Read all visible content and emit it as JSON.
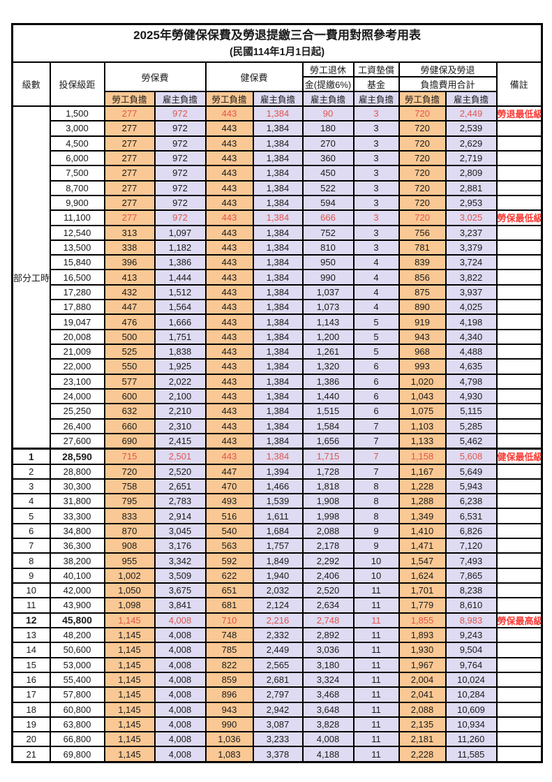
{
  "title": "2025年勞健保保費及勞退提繳三合一費用對照參考用表",
  "subtitle": "(民國114年1月1日起)",
  "colors": {
    "employee_bg": "#FAC894",
    "employer_bg": "#DEDBF2",
    "highlight_value": "#E2544E",
    "remark_red": "#FA3B36",
    "border": "#000000"
  },
  "header": {
    "level": "級數",
    "bracket": "投保級距",
    "labor_ins": "勞保費",
    "health_ins": "健保費",
    "pension_line1": "勞工退休",
    "pension_line2": "金(提繳6%)",
    "wage_fund_line1": "工資墊償",
    "wage_fund_line2": "基金",
    "total_line1": "勞健保及勞退",
    "total_line2": "負擔費用合計",
    "remark": "備註",
    "employee": "勞工負擔",
    "employer": "雇主負擔"
  },
  "part_time": {
    "label": "部分工時",
    "row_count": 23
  },
  "rows": [
    {
      "level": "",
      "bracket": "1,500",
      "values": [
        "277",
        "972",
        "443",
        "1,384",
        "90",
        "3",
        "720",
        "2,449"
      ],
      "remark": "勞退最低級距",
      "hl": true,
      "bold": false
    },
    {
      "level": "",
      "bracket": "3,000",
      "values": [
        "277",
        "972",
        "443",
        "1,384",
        "180",
        "3",
        "720",
        "2,539"
      ],
      "remark": "",
      "hl": false,
      "bold": false
    },
    {
      "level": "",
      "bracket": "4,500",
      "values": [
        "277",
        "972",
        "443",
        "1,384",
        "270",
        "3",
        "720",
        "2,629"
      ],
      "remark": "",
      "hl": false,
      "bold": false
    },
    {
      "level": "",
      "bracket": "6,000",
      "values": [
        "277",
        "972",
        "443",
        "1,384",
        "360",
        "3",
        "720",
        "2,719"
      ],
      "remark": "",
      "hl": false,
      "bold": false
    },
    {
      "level": "",
      "bracket": "7,500",
      "values": [
        "277",
        "972",
        "443",
        "1,384",
        "450",
        "3",
        "720",
        "2,809"
      ],
      "remark": "",
      "hl": false,
      "bold": false
    },
    {
      "level": "",
      "bracket": "8,700",
      "values": [
        "277",
        "972",
        "443",
        "1,384",
        "522",
        "3",
        "720",
        "2,881"
      ],
      "remark": "",
      "hl": false,
      "bold": false
    },
    {
      "level": "",
      "bracket": "9,900",
      "values": [
        "277",
        "972",
        "443",
        "1,384",
        "594",
        "3",
        "720",
        "2,953"
      ],
      "remark": "",
      "hl": false,
      "bold": false
    },
    {
      "level": "",
      "bracket": "11,100",
      "values": [
        "277",
        "972",
        "443",
        "1,384",
        "666",
        "3",
        "720",
        "3,025"
      ],
      "remark": "勞保最低級距",
      "hl": true,
      "bold": false
    },
    {
      "level": "",
      "bracket": "12,540",
      "values": [
        "313",
        "1,097",
        "443",
        "1,384",
        "752",
        "3",
        "756",
        "3,237"
      ],
      "remark": "",
      "hl": false,
      "bold": false
    },
    {
      "level": "",
      "bracket": "13,500",
      "values": [
        "338",
        "1,182",
        "443",
        "1,384",
        "810",
        "3",
        "781",
        "3,379"
      ],
      "remark": "",
      "hl": false,
      "bold": false
    },
    {
      "level": "",
      "bracket": "15,840",
      "values": [
        "396",
        "1,386",
        "443",
        "1,384",
        "950",
        "4",
        "839",
        "3,724"
      ],
      "remark": "",
      "hl": false,
      "bold": false
    },
    {
      "level": "",
      "bracket": "16,500",
      "values": [
        "413",
        "1,444",
        "443",
        "1,384",
        "990",
        "4",
        "856",
        "3,822"
      ],
      "remark": "",
      "hl": false,
      "bold": false
    },
    {
      "level": "",
      "bracket": "17,280",
      "values": [
        "432",
        "1,512",
        "443",
        "1,384",
        "1,037",
        "4",
        "875",
        "3,937"
      ],
      "remark": "",
      "hl": false,
      "bold": false
    },
    {
      "level": "",
      "bracket": "17,880",
      "values": [
        "447",
        "1,564",
        "443",
        "1,384",
        "1,073",
        "4",
        "890",
        "4,025"
      ],
      "remark": "",
      "hl": false,
      "bold": false
    },
    {
      "level": "",
      "bracket": "19,047",
      "values": [
        "476",
        "1,666",
        "443",
        "1,384",
        "1,143",
        "5",
        "919",
        "4,198"
      ],
      "remark": "",
      "hl": false,
      "bold": false
    },
    {
      "level": "",
      "bracket": "20,008",
      "values": [
        "500",
        "1,751",
        "443",
        "1,384",
        "1,200",
        "5",
        "943",
        "4,340"
      ],
      "remark": "",
      "hl": false,
      "bold": false
    },
    {
      "level": "",
      "bracket": "21,009",
      "values": [
        "525",
        "1,838",
        "443",
        "1,384",
        "1,261",
        "5",
        "968",
        "4,488"
      ],
      "remark": "",
      "hl": false,
      "bold": false
    },
    {
      "level": "",
      "bracket": "22,000",
      "values": [
        "550",
        "1,925",
        "443",
        "1,384",
        "1,320",
        "6",
        "993",
        "4,635"
      ],
      "remark": "",
      "hl": false,
      "bold": false
    },
    {
      "level": "",
      "bracket": "23,100",
      "values": [
        "577",
        "2,022",
        "443",
        "1,384",
        "1,386",
        "6",
        "1,020",
        "4,798"
      ],
      "remark": "",
      "hl": false,
      "bold": false
    },
    {
      "level": "",
      "bracket": "24,000",
      "values": [
        "600",
        "2,100",
        "443",
        "1,384",
        "1,440",
        "6",
        "1,043",
        "4,930"
      ],
      "remark": "",
      "hl": false,
      "bold": false
    },
    {
      "level": "",
      "bracket": "25,250",
      "values": [
        "632",
        "2,210",
        "443",
        "1,384",
        "1,515",
        "6",
        "1,075",
        "5,115"
      ],
      "remark": "",
      "hl": false,
      "bold": false
    },
    {
      "level": "",
      "bracket": "26,400",
      "values": [
        "660",
        "2,310",
        "443",
        "1,384",
        "1,584",
        "7",
        "1,103",
        "5,285"
      ],
      "remark": "",
      "hl": false,
      "bold": false
    },
    {
      "level": "",
      "bracket": "27,600",
      "values": [
        "690",
        "2,415",
        "443",
        "1,384",
        "1,656",
        "7",
        "1,133",
        "5,462"
      ],
      "remark": "",
      "hl": false,
      "bold": false
    },
    {
      "level": "1",
      "bracket": "28,590",
      "values": [
        "715",
        "2,501",
        "443",
        "1,384",
        "1,715",
        "7",
        "1,158",
        "5,608"
      ],
      "remark": "健保最低級距",
      "hl": true,
      "bold": true,
      "sep": true
    },
    {
      "level": "2",
      "bracket": "28,800",
      "values": [
        "720",
        "2,520",
        "447",
        "1,394",
        "1,728",
        "7",
        "1,167",
        "5,649"
      ],
      "remark": "",
      "hl": false,
      "bold": false
    },
    {
      "level": "3",
      "bracket": "30,300",
      "values": [
        "758",
        "2,651",
        "470",
        "1,466",
        "1,818",
        "8",
        "1,228",
        "5,943"
      ],
      "remark": "",
      "hl": false,
      "bold": false
    },
    {
      "level": "4",
      "bracket": "31,800",
      "values": [
        "795",
        "2,783",
        "493",
        "1,539",
        "1,908",
        "8",
        "1,288",
        "6,238"
      ],
      "remark": "",
      "hl": false,
      "bold": false
    },
    {
      "level": "5",
      "bracket": "33,300",
      "values": [
        "833",
        "2,914",
        "516",
        "1,611",
        "1,998",
        "8",
        "1,349",
        "6,531"
      ],
      "remark": "",
      "hl": false,
      "bold": false
    },
    {
      "level": "6",
      "bracket": "34,800",
      "values": [
        "870",
        "3,045",
        "540",
        "1,684",
        "2,088",
        "9",
        "1,410",
        "6,826"
      ],
      "remark": "",
      "hl": false,
      "bold": false
    },
    {
      "level": "7",
      "bracket": "36,300",
      "values": [
        "908",
        "3,176",
        "563",
        "1,757",
        "2,178",
        "9",
        "1,471",
        "7,120"
      ],
      "remark": "",
      "hl": false,
      "bold": false
    },
    {
      "level": "8",
      "bracket": "38,200",
      "values": [
        "955",
        "3,342",
        "592",
        "1,849",
        "2,292",
        "10",
        "1,547",
        "7,493"
      ],
      "remark": "",
      "hl": false,
      "bold": false
    },
    {
      "level": "9",
      "bracket": "40,100",
      "values": [
        "1,002",
        "3,509",
        "622",
        "1,940",
        "2,406",
        "10",
        "1,624",
        "7,865"
      ],
      "remark": "",
      "hl": false,
      "bold": false
    },
    {
      "level": "10",
      "bracket": "42,000",
      "values": [
        "1,050",
        "3,675",
        "651",
        "2,032",
        "2,520",
        "11",
        "1,701",
        "8,238"
      ],
      "remark": "",
      "hl": false,
      "bold": false
    },
    {
      "level": "11",
      "bracket": "43,900",
      "values": [
        "1,098",
        "3,841",
        "681",
        "2,124",
        "2,634",
        "11",
        "1,779",
        "8,610"
      ],
      "remark": "",
      "hl": false,
      "bold": false
    },
    {
      "level": "12",
      "bracket": "45,800",
      "values": [
        "1,145",
        "4,008",
        "710",
        "2,216",
        "2,748",
        "11",
        "1,855",
        "8,983"
      ],
      "remark": "勞保最高級距",
      "hl": true,
      "bold": true
    },
    {
      "level": "13",
      "bracket": "48,200",
      "values": [
        "1,145",
        "4,008",
        "748",
        "2,332",
        "2,892",
        "11",
        "1,893",
        "9,243"
      ],
      "remark": "",
      "hl": false,
      "bold": false
    },
    {
      "level": "14",
      "bracket": "50,600",
      "values": [
        "1,145",
        "4,008",
        "785",
        "2,449",
        "3,036",
        "11",
        "1,930",
        "9,504"
      ],
      "remark": "",
      "hl": false,
      "bold": false
    },
    {
      "level": "15",
      "bracket": "53,000",
      "values": [
        "1,145",
        "4,008",
        "822",
        "2,565",
        "3,180",
        "11",
        "1,967",
        "9,764"
      ],
      "remark": "",
      "hl": false,
      "bold": false
    },
    {
      "level": "16",
      "bracket": "55,400",
      "values": [
        "1,145",
        "4,008",
        "859",
        "2,681",
        "3,324",
        "11",
        "2,004",
        "10,024"
      ],
      "remark": "",
      "hl": false,
      "bold": false
    },
    {
      "level": "17",
      "bracket": "57,800",
      "values": [
        "1,145",
        "4,008",
        "896",
        "2,797",
        "3,468",
        "11",
        "2,041",
        "10,284"
      ],
      "remark": "",
      "hl": false,
      "bold": false
    },
    {
      "level": "18",
      "bracket": "60,800",
      "values": [
        "1,145",
        "4,008",
        "943",
        "2,942",
        "3,648",
        "11",
        "2,088",
        "10,609"
      ],
      "remark": "",
      "hl": false,
      "bold": false
    },
    {
      "level": "19",
      "bracket": "63,800",
      "values": [
        "1,145",
        "4,008",
        "990",
        "3,087",
        "3,828",
        "11",
        "2,135",
        "10,934"
      ],
      "remark": "",
      "hl": false,
      "bold": false
    },
    {
      "level": "20",
      "bracket": "66,800",
      "values": [
        "1,145",
        "4,008",
        "1,036",
        "3,233",
        "4,008",
        "11",
        "2,181",
        "11,260"
      ],
      "remark": "",
      "hl": false,
      "bold": false
    },
    {
      "level": "21",
      "bracket": "69,800",
      "values": [
        "1,145",
        "4,008",
        "1,083",
        "3,378",
        "4,188",
        "11",
        "2,228",
        "11,585"
      ],
      "remark": "",
      "hl": false,
      "bold": false
    }
  ]
}
